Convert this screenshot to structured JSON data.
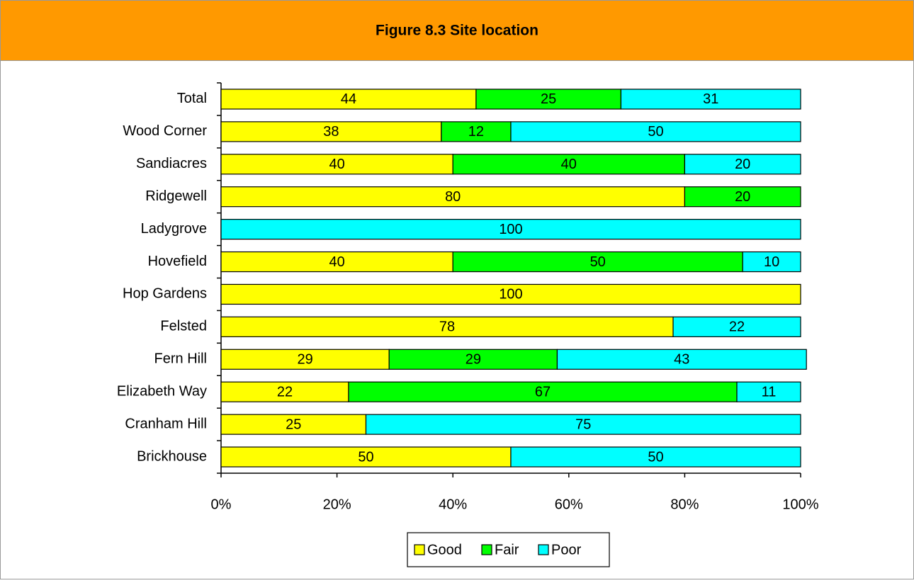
{
  "chart_data": {
    "type": "stacked-barh",
    "title": "Figure 8.3 Site location",
    "categories": [
      "Total",
      "Wood Corner",
      "Sandiacres",
      "Ridgewell",
      "Ladygrove",
      "Hovefield",
      "Hop Gardens",
      "Felsted",
      "Fern Hill",
      "Elizabeth Way",
      "Cranham Hill",
      "Brickhouse"
    ],
    "series": [
      {
        "name": "Good",
        "color": "#ffff00",
        "values": [
          44,
          38,
          40,
          80,
          null,
          40,
          100,
          78,
          29,
          22,
          25,
          50
        ]
      },
      {
        "name": "Fair",
        "color": "#00ff00",
        "values": [
          25,
          12,
          40,
          20,
          null,
          50,
          null,
          null,
          29,
          67,
          null,
          null
        ]
      },
      {
        "name": "Poor",
        "color": "#00ffff",
        "values": [
          31,
          50,
          20,
          null,
          100,
          10,
          null,
          22,
          43,
          11,
          75,
          50
        ]
      }
    ],
    "xlim": [
      0,
      100
    ],
    "xticks": [
      {
        "value": 0,
        "label": "0%"
      },
      {
        "value": 20,
        "label": "20%"
      },
      {
        "value": 40,
        "label": "40%"
      },
      {
        "value": 60,
        "label": "60%"
      },
      {
        "value": 80,
        "label": "80%"
      },
      {
        "value": 100,
        "label": "100%"
      }
    ],
    "legend": "bottom"
  }
}
